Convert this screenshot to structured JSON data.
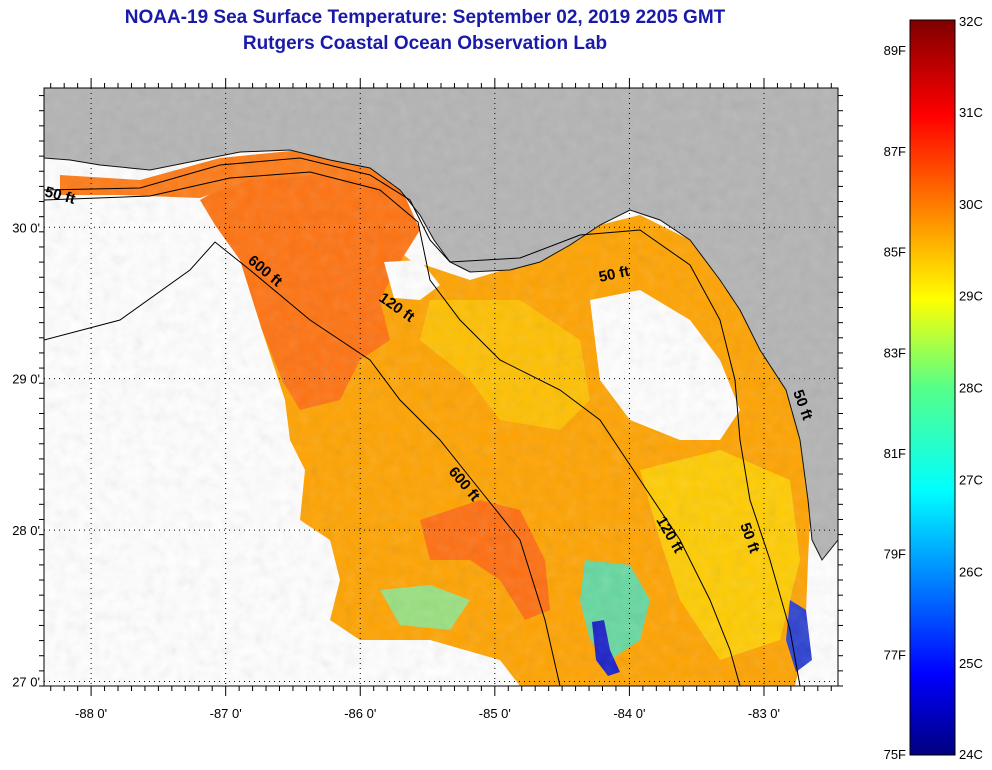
{
  "header": {
    "title": "NOAA-19 Sea Surface Temperature:  September 02, 2019 2205 GMT",
    "subtitle": "Rutgers Coastal Ocean Observation Lab"
  },
  "map": {
    "lon_range": [
      -88.35,
      -82.45
    ],
    "lat_range": [
      26.97,
      30.92
    ],
    "lon_ticks": [
      "-88 0'",
      "-87 0'",
      "-86 0'",
      "-85 0'",
      "-84 0'",
      "-83 0'"
    ],
    "lat_ticks": [
      "30 0'",
      "29 0'",
      "28 0'",
      "27 0'"
    ],
    "contour_labels": [
      "50 ft",
      "600 ft",
      "120 ft",
      "50 ft",
      "600 ft",
      "120 ft",
      "50 ft",
      "50 ft"
    ],
    "colors": {
      "land": "#b4b4b4",
      "cloud": "#ffffff",
      "warm": "#ff6a10",
      "mid": "#ffb000",
      "cool": "#3ad6c6",
      "cold": "#1010c0"
    }
  },
  "colorbar": {
    "celsius_labels": [
      "32C",
      "31C",
      "30C",
      "29C",
      "28C",
      "27C",
      "26C",
      "25C",
      "24C"
    ],
    "fahrenheit_labels": [
      "89F",
      "87F",
      "85F",
      "83F",
      "81F",
      "79F",
      "77F",
      "75F"
    ],
    "celsius_range": [
      24,
      32
    ],
    "fahrenheit_range": [
      75,
      89.6
    ]
  }
}
